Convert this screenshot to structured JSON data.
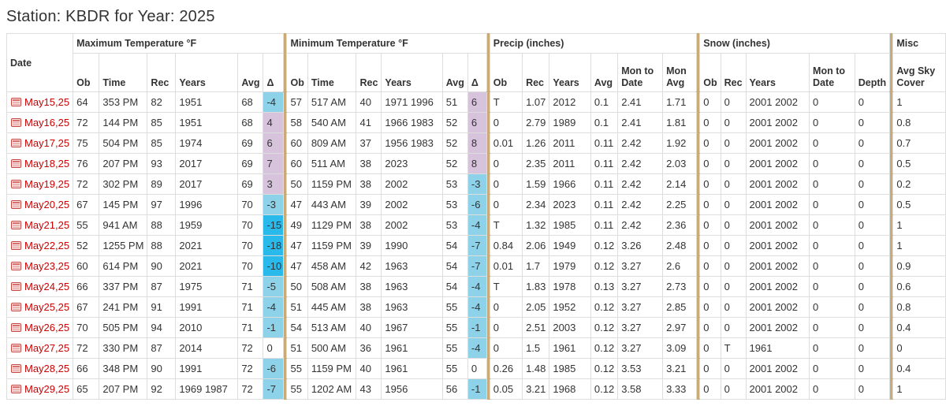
{
  "title": "Station: KBDR for Year: 2025",
  "colors": {
    "date_red": "#cc0000",
    "divider_tan": "#c9ab7a",
    "delta_neg_light": "#8ed2e9",
    "delta_neg_strong": "#29b9ea",
    "delta_pos": "#d7c3dc",
    "border_gray": "#dddddd"
  },
  "icons": {
    "date_icon": "calendar-list-icon (red rectangle with horizontal stripes)"
  },
  "table": {
    "date_header": "Date",
    "groups": [
      "Maximum Temperature °F",
      "Minimum Temperature °F",
      "Precip (inches)",
      "Snow (inches)",
      "Misc"
    ],
    "sub_headers": [
      "Ob",
      "Time",
      "Rec",
      "Years",
      "Avg",
      "Δ",
      "Ob",
      "Time",
      "Rec",
      "Years",
      "Avg",
      "Δ",
      "Ob",
      "Rec",
      "Years",
      "Avg",
      "Mon to Date",
      "Mon Avg",
      "Ob",
      "Rec",
      "Years",
      "Mon to Date",
      "Depth",
      "Avg Sky Cover"
    ],
    "rows": [
      {
        "date": "May15,25",
        "max": {
          "ob": "64",
          "time": "353 PM",
          "rec": "82",
          "years": "1951",
          "avg": "68",
          "delta": "-4"
        },
        "min": {
          "ob": "57",
          "time": "517 AM",
          "rec": "40",
          "years": "1971 1996",
          "avg": "51",
          "delta": "6"
        },
        "precip": {
          "ob": "T",
          "rec": "1.07",
          "years": "2012",
          "avg": "0.1",
          "mon_to_date": "2.41",
          "mon_avg": "1.71"
        },
        "snow": {
          "ob": "0",
          "rec": "0",
          "years": "2001 2002",
          "mon_to_date": "0",
          "depth": "0"
        },
        "misc": {
          "avg_sky_cover": "1"
        }
      },
      {
        "date": "May16,25",
        "max": {
          "ob": "72",
          "time": "144 PM",
          "rec": "85",
          "years": "1951",
          "avg": "68",
          "delta": "4"
        },
        "min": {
          "ob": "58",
          "time": "540 AM",
          "rec": "41",
          "years": "1966 1983",
          "avg": "52",
          "delta": "6"
        },
        "precip": {
          "ob": "0",
          "rec": "2.79",
          "years": "1989",
          "avg": "0.1",
          "mon_to_date": "2.41",
          "mon_avg": "1.81"
        },
        "snow": {
          "ob": "0",
          "rec": "0",
          "years": "2001 2002",
          "mon_to_date": "0",
          "depth": "0"
        },
        "misc": {
          "avg_sky_cover": "0.8"
        }
      },
      {
        "date": "May17,25",
        "max": {
          "ob": "75",
          "time": "504 PM",
          "rec": "85",
          "years": "1974",
          "avg": "69",
          "delta": "6"
        },
        "min": {
          "ob": "60",
          "time": "809 AM",
          "rec": "37",
          "years": "1956 1983",
          "avg": "52",
          "delta": "8"
        },
        "precip": {
          "ob": "0.01",
          "rec": "1.26",
          "years": "2011",
          "avg": "0.11",
          "mon_to_date": "2.42",
          "mon_avg": "1.92"
        },
        "snow": {
          "ob": "0",
          "rec": "0",
          "years": "2001 2002",
          "mon_to_date": "0",
          "depth": "0"
        },
        "misc": {
          "avg_sky_cover": "0.7"
        }
      },
      {
        "date": "May18,25",
        "max": {
          "ob": "76",
          "time": "207 PM",
          "rec": "93",
          "years": "2017",
          "avg": "69",
          "delta": "7"
        },
        "min": {
          "ob": "60",
          "time": "511 AM",
          "rec": "38",
          "years": "2023",
          "avg": "52",
          "delta": "8"
        },
        "precip": {
          "ob": "0",
          "rec": "2.35",
          "years": "2011",
          "avg": "0.11",
          "mon_to_date": "2.42",
          "mon_avg": "2.03"
        },
        "snow": {
          "ob": "0",
          "rec": "0",
          "years": "2001 2002",
          "mon_to_date": "0",
          "depth": "0"
        },
        "misc": {
          "avg_sky_cover": "0.5"
        }
      },
      {
        "date": "May19,25",
        "max": {
          "ob": "72",
          "time": "302 PM",
          "rec": "89",
          "years": "2017",
          "avg": "69",
          "delta": "3"
        },
        "min": {
          "ob": "50",
          "time": "1159 PM",
          "rec": "38",
          "years": "2002",
          "avg": "53",
          "delta": "-3"
        },
        "precip": {
          "ob": "0",
          "rec": "1.59",
          "years": "1966",
          "avg": "0.11",
          "mon_to_date": "2.42",
          "mon_avg": "2.14"
        },
        "snow": {
          "ob": "0",
          "rec": "0",
          "years": "2001 2002",
          "mon_to_date": "0",
          "depth": "0"
        },
        "misc": {
          "avg_sky_cover": "0.2"
        }
      },
      {
        "date": "May20,25",
        "max": {
          "ob": "67",
          "time": "145 PM",
          "rec": "97",
          "years": "1996",
          "avg": "70",
          "delta": "-3"
        },
        "min": {
          "ob": "47",
          "time": "443 AM",
          "rec": "39",
          "years": "2002",
          "avg": "53",
          "delta": "-6"
        },
        "precip": {
          "ob": "0",
          "rec": "2.34",
          "years": "2023",
          "avg": "0.11",
          "mon_to_date": "2.42",
          "mon_avg": "2.25"
        },
        "snow": {
          "ob": "0",
          "rec": "0",
          "years": "2001 2002",
          "mon_to_date": "0",
          "depth": "0"
        },
        "misc": {
          "avg_sky_cover": "0.5"
        }
      },
      {
        "date": "May21,25",
        "max": {
          "ob": "55",
          "time": "941 AM",
          "rec": "88",
          "years": "1959",
          "avg": "70",
          "delta": "-15"
        },
        "min": {
          "ob": "49",
          "time": "1129 PM",
          "rec": "38",
          "years": "2002",
          "avg": "53",
          "delta": "-4"
        },
        "precip": {
          "ob": "T",
          "rec": "1.32",
          "years": "1985",
          "avg": "0.11",
          "mon_to_date": "2.42",
          "mon_avg": "2.36"
        },
        "snow": {
          "ob": "0",
          "rec": "0",
          "years": "2001 2002",
          "mon_to_date": "0",
          "depth": "0"
        },
        "misc": {
          "avg_sky_cover": "1"
        }
      },
      {
        "date": "May22,25",
        "max": {
          "ob": "52",
          "time": "1255 PM",
          "rec": "88",
          "years": "2021",
          "avg": "70",
          "delta": "-18"
        },
        "min": {
          "ob": "47",
          "time": "1159 PM",
          "rec": "39",
          "years": "1990",
          "avg": "54",
          "delta": "-7"
        },
        "precip": {
          "ob": "0.84",
          "rec": "2.06",
          "years": "1949",
          "avg": "0.12",
          "mon_to_date": "3.26",
          "mon_avg": "2.48"
        },
        "snow": {
          "ob": "0",
          "rec": "0",
          "years": "2001 2002",
          "mon_to_date": "0",
          "depth": "0"
        },
        "misc": {
          "avg_sky_cover": "1"
        }
      },
      {
        "date": "May23,25",
        "max": {
          "ob": "60",
          "time": "614 PM",
          "rec": "90",
          "years": "2021",
          "avg": "70",
          "delta": "-10"
        },
        "min": {
          "ob": "47",
          "time": "458 AM",
          "rec": "42",
          "years": "1963",
          "avg": "54",
          "delta": "-7"
        },
        "precip": {
          "ob": "0.01",
          "rec": "1.7",
          "years": "1979",
          "avg": "0.12",
          "mon_to_date": "3.27",
          "mon_avg": "2.6"
        },
        "snow": {
          "ob": "0",
          "rec": "0",
          "years": "2001 2002",
          "mon_to_date": "0",
          "depth": "0"
        },
        "misc": {
          "avg_sky_cover": "0.9"
        }
      },
      {
        "date": "May24,25",
        "max": {
          "ob": "66",
          "time": "337 PM",
          "rec": "87",
          "years": "1975",
          "avg": "71",
          "delta": "-5"
        },
        "min": {
          "ob": "50",
          "time": "508 AM",
          "rec": "38",
          "years": "1963",
          "avg": "54",
          "delta": "-4"
        },
        "precip": {
          "ob": "T",
          "rec": "1.83",
          "years": "1978",
          "avg": "0.13",
          "mon_to_date": "3.27",
          "mon_avg": "2.73"
        },
        "snow": {
          "ob": "0",
          "rec": "0",
          "years": "2001 2002",
          "mon_to_date": "0",
          "depth": "0"
        },
        "misc": {
          "avg_sky_cover": "0.6"
        }
      },
      {
        "date": "May25,25",
        "max": {
          "ob": "67",
          "time": "241 PM",
          "rec": "91",
          "years": "1991",
          "avg": "71",
          "delta": "-4"
        },
        "min": {
          "ob": "51",
          "time": "445 AM",
          "rec": "38",
          "years": "1963",
          "avg": "55",
          "delta": "-4"
        },
        "precip": {
          "ob": "0",
          "rec": "2.05",
          "years": "1952",
          "avg": "0.12",
          "mon_to_date": "3.27",
          "mon_avg": "2.85"
        },
        "snow": {
          "ob": "0",
          "rec": "0",
          "years": "2001 2002",
          "mon_to_date": "0",
          "depth": "0"
        },
        "misc": {
          "avg_sky_cover": "0.8"
        }
      },
      {
        "date": "May26,25",
        "max": {
          "ob": "70",
          "time": "505 PM",
          "rec": "94",
          "years": "2010",
          "avg": "71",
          "delta": "-1"
        },
        "min": {
          "ob": "54",
          "time": "513 AM",
          "rec": "40",
          "years": "1967",
          "avg": "55",
          "delta": "-1"
        },
        "precip": {
          "ob": "0",
          "rec": "2.51",
          "years": "2003",
          "avg": "0.12",
          "mon_to_date": "3.27",
          "mon_avg": "2.97"
        },
        "snow": {
          "ob": "0",
          "rec": "0",
          "years": "2001 2002",
          "mon_to_date": "0",
          "depth": "0"
        },
        "misc": {
          "avg_sky_cover": "0.4"
        }
      },
      {
        "date": "May27,25",
        "max": {
          "ob": "72",
          "time": "330 PM",
          "rec": "87",
          "years": "2014",
          "avg": "72",
          "delta": "0"
        },
        "min": {
          "ob": "51",
          "time": "500 AM",
          "rec": "36",
          "years": "1961",
          "avg": "55",
          "delta": "-4"
        },
        "precip": {
          "ob": "0",
          "rec": "1.5",
          "years": "1961",
          "avg": "0.12",
          "mon_to_date": "3.27",
          "mon_avg": "3.09"
        },
        "snow": {
          "ob": "0",
          "rec": "T",
          "years": "1961",
          "mon_to_date": "0",
          "depth": "0"
        },
        "misc": {
          "avg_sky_cover": "0"
        }
      },
      {
        "date": "May28,25",
        "max": {
          "ob": "66",
          "time": "348 PM",
          "rec": "90",
          "years": "1991",
          "avg": "72",
          "delta": "-6"
        },
        "min": {
          "ob": "55",
          "time": "1159 PM",
          "rec": "40",
          "years": "1961",
          "avg": "55",
          "delta": "0"
        },
        "precip": {
          "ob": "0.26",
          "rec": "1.48",
          "years": "1985",
          "avg": "0.12",
          "mon_to_date": "3.53",
          "mon_avg": "3.21"
        },
        "snow": {
          "ob": "0",
          "rec": "0",
          "years": "2001 2002",
          "mon_to_date": "0",
          "depth": "0"
        },
        "misc": {
          "avg_sky_cover": "0.4"
        }
      },
      {
        "date": "May29,25",
        "max": {
          "ob": "65",
          "time": "207 PM",
          "rec": "92",
          "years": "1969 1987",
          "avg": "72",
          "delta": "-7"
        },
        "min": {
          "ob": "55",
          "time": "1202 AM",
          "rec": "43",
          "years": "1956",
          "avg": "56",
          "delta": "-1"
        },
        "precip": {
          "ob": "0.05",
          "rec": "3.21",
          "years": "1968",
          "avg": "0.12",
          "mon_to_date": "3.58",
          "mon_avg": "3.33"
        },
        "snow": {
          "ob": "0",
          "rec": "0",
          "years": "2001 2002",
          "mon_to_date": "0",
          "depth": "0"
        },
        "misc": {
          "avg_sky_cover": "1"
        }
      }
    ]
  }
}
